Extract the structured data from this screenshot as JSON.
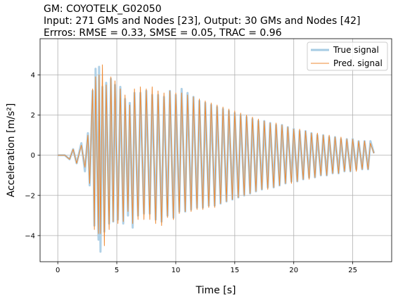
{
  "chart_data": {
    "type": "line",
    "title_lines": [
      "GM: COYOTELK_G02050",
      "Input: 271 GMs and Nodes [23], Output: 30 GMs and Nodes [42]",
      "Errros: RMSE = 0.33, SMSE = 0.05, TRAC = 0.96"
    ],
    "xlabel": "Time [s]",
    "ylabel": "Acceleration [m/s²]",
    "xlim": [
      -1.5,
      28.3
    ],
    "ylim": [
      -5.3,
      5.8
    ],
    "xticks": [
      0,
      5,
      10,
      15,
      20,
      25
    ],
    "yticks": [
      -4,
      -2,
      0,
      2,
      4
    ],
    "grid": true,
    "legend_position": "upper right",
    "series": [
      {
        "name": "True signal",
        "color": "#a6cbe3",
        "values": [
          [
            0.0,
            0.0
          ],
          [
            0.6,
            0.0
          ],
          [
            1.0,
            -0.2
          ],
          [
            1.3,
            0.3
          ],
          [
            1.6,
            -0.4
          ],
          [
            2.0,
            0.6
          ],
          [
            2.3,
            -0.8
          ],
          [
            2.55,
            1.1
          ],
          [
            2.7,
            -1.5
          ],
          [
            2.95,
            3.2
          ],
          [
            3.1,
            -3.5
          ],
          [
            3.2,
            4.3
          ],
          [
            3.45,
            -4.2
          ],
          [
            3.5,
            4.4
          ],
          [
            3.62,
            -4.8
          ],
          [
            3.78,
            3.4
          ],
          [
            3.95,
            -3.8
          ],
          [
            4.1,
            3.6
          ],
          [
            4.35,
            -3.4
          ],
          [
            4.5,
            3.8
          ],
          [
            4.7,
            -3.3
          ],
          [
            4.85,
            3.5
          ],
          [
            5.1,
            -3.2
          ],
          [
            5.3,
            3.4
          ],
          [
            5.55,
            -3.4
          ],
          [
            5.7,
            2.8
          ],
          [
            5.95,
            -3.0
          ],
          [
            6.1,
            2.6
          ],
          [
            6.35,
            -3.6
          ],
          [
            6.5,
            3.1
          ],
          [
            6.8,
            -3.0
          ],
          [
            7.0,
            3.1
          ],
          [
            7.3,
            -2.9
          ],
          [
            7.5,
            3.2
          ],
          [
            7.8,
            -2.9
          ],
          [
            8.0,
            3.0
          ],
          [
            8.3,
            -3.2
          ],
          [
            8.5,
            3.0
          ],
          [
            8.8,
            -3.3
          ],
          [
            9.0,
            2.9
          ],
          [
            9.3,
            -3.0
          ],
          [
            9.5,
            3.2
          ],
          [
            9.8,
            -3.1
          ],
          [
            10.0,
            3.0
          ],
          [
            10.3,
            -2.8
          ],
          [
            10.5,
            3.3
          ],
          [
            10.8,
            -2.8
          ],
          [
            11.0,
            3.1
          ],
          [
            11.3,
            -2.7
          ],
          [
            11.5,
            2.9
          ],
          [
            11.8,
            -2.6
          ],
          [
            12.0,
            2.7
          ],
          [
            12.3,
            -2.6
          ],
          [
            12.5,
            2.6
          ],
          [
            12.8,
            -2.5
          ],
          [
            13.0,
            2.5
          ],
          [
            13.3,
            -2.5
          ],
          [
            13.5,
            2.4
          ],
          [
            13.8,
            -2.4
          ],
          [
            14.0,
            2.3
          ],
          [
            14.3,
            -2.3
          ],
          [
            14.5,
            2.2
          ],
          [
            14.8,
            -2.2
          ],
          [
            15.0,
            2.1
          ],
          [
            15.3,
            -2.1
          ],
          [
            15.5,
            2.0
          ],
          [
            15.8,
            -2.0
          ],
          [
            16.0,
            1.9
          ],
          [
            16.3,
            -1.9
          ],
          [
            16.5,
            1.8
          ],
          [
            16.8,
            -1.8
          ],
          [
            17.0,
            1.7
          ],
          [
            17.3,
            -1.7
          ],
          [
            17.5,
            1.7
          ],
          [
            17.8,
            -1.6
          ],
          [
            18.0,
            1.6
          ],
          [
            18.3,
            -1.6
          ],
          [
            18.5,
            1.5
          ],
          [
            18.8,
            -1.5
          ],
          [
            19.0,
            1.5
          ],
          [
            19.3,
            -1.4
          ],
          [
            19.5,
            1.4
          ],
          [
            19.8,
            -1.3
          ],
          [
            20.0,
            1.3
          ],
          [
            20.3,
            -1.3
          ],
          [
            20.5,
            1.2
          ],
          [
            20.8,
            -1.2
          ],
          [
            21.0,
            1.2
          ],
          [
            21.3,
            -1.1
          ],
          [
            21.5,
            1.1
          ],
          [
            21.8,
            -1.1
          ],
          [
            22.0,
            1.0
          ],
          [
            22.3,
            -1.0
          ],
          [
            22.5,
            1.0
          ],
          [
            22.8,
            -1.0
          ],
          [
            23.0,
            0.9
          ],
          [
            23.3,
            -0.9
          ],
          [
            23.5,
            0.9
          ],
          [
            23.8,
            -0.9
          ],
          [
            24.0,
            0.8
          ],
          [
            24.3,
            -0.8
          ],
          [
            24.5,
            0.8
          ],
          [
            24.8,
            -0.8
          ],
          [
            25.0,
            0.8
          ],
          [
            25.3,
            -0.7
          ],
          [
            25.5,
            0.7
          ],
          [
            25.8,
            -0.7
          ],
          [
            26.0,
            0.7
          ],
          [
            26.3,
            -0.7
          ],
          [
            26.5,
            0.7
          ],
          [
            26.8,
            0.1
          ]
        ]
      },
      {
        "name": "Pred. signal",
        "color": "#ee8a33",
        "values": [
          [
            0.0,
            0.0
          ],
          [
            0.6,
            0.0
          ],
          [
            1.0,
            -0.2
          ],
          [
            1.3,
            0.3
          ],
          [
            1.6,
            -0.4
          ],
          [
            2.0,
            0.5
          ],
          [
            2.3,
            -0.6
          ],
          [
            2.55,
            1.0
          ],
          [
            2.7,
            -1.4
          ],
          [
            2.95,
            3.3
          ],
          [
            3.1,
            -3.7
          ],
          [
            3.2,
            3.9
          ],
          [
            3.45,
            -3.9
          ],
          [
            3.5,
            4.0
          ],
          [
            3.62,
            -3.9
          ],
          [
            3.78,
            4.5
          ],
          [
            3.95,
            -4.5
          ],
          [
            4.1,
            3.5
          ],
          [
            4.35,
            -3.7
          ],
          [
            4.5,
            3.9
          ],
          [
            4.7,
            -3.3
          ],
          [
            4.85,
            3.7
          ],
          [
            5.1,
            -3.4
          ],
          [
            5.3,
            3.3
          ],
          [
            5.55,
            -3.3
          ],
          [
            5.7,
            3.0
          ],
          [
            5.95,
            -2.8
          ],
          [
            6.1,
            2.5
          ],
          [
            6.35,
            -3.4
          ],
          [
            6.5,
            3.3
          ],
          [
            6.8,
            -3.2
          ],
          [
            7.0,
            3.4
          ],
          [
            7.3,
            -3.2
          ],
          [
            7.5,
            3.3
          ],
          [
            7.8,
            -3.2
          ],
          [
            8.0,
            3.4
          ],
          [
            8.3,
            -3.4
          ],
          [
            8.5,
            3.2
          ],
          [
            8.8,
            -3.5
          ],
          [
            9.0,
            3.1
          ],
          [
            9.3,
            -3.1
          ],
          [
            9.5,
            3.2
          ],
          [
            9.8,
            -3.2
          ],
          [
            10.0,
            3.1
          ],
          [
            10.3,
            -2.9
          ],
          [
            10.5,
            3.1
          ],
          [
            10.8,
            -2.8
          ],
          [
            11.0,
            3.0
          ],
          [
            11.3,
            -2.8
          ],
          [
            11.5,
            2.9
          ],
          [
            11.8,
            -2.7
          ],
          [
            12.0,
            2.8
          ],
          [
            12.3,
            -2.7
          ],
          [
            12.5,
            2.7
          ],
          [
            12.8,
            -2.6
          ],
          [
            13.0,
            2.6
          ],
          [
            13.3,
            -2.6
          ],
          [
            13.5,
            2.5
          ],
          [
            13.8,
            -2.4
          ],
          [
            14.0,
            2.4
          ],
          [
            14.3,
            -2.3
          ],
          [
            14.5,
            2.3
          ],
          [
            14.8,
            -2.2
          ],
          [
            15.0,
            2.2
          ],
          [
            15.3,
            -2.1
          ],
          [
            15.5,
            2.1
          ],
          [
            15.8,
            -2.0
          ],
          [
            16.0,
            2.0
          ],
          [
            16.3,
            -1.9
          ],
          [
            16.5,
            1.9
          ],
          [
            16.8,
            -1.8
          ],
          [
            17.0,
            1.8
          ],
          [
            17.3,
            -1.7
          ],
          [
            17.5,
            1.7
          ],
          [
            17.8,
            -1.7
          ],
          [
            18.0,
            1.6
          ],
          [
            18.3,
            -1.6
          ],
          [
            18.5,
            1.6
          ],
          [
            18.8,
            -1.5
          ],
          [
            19.0,
            1.5
          ],
          [
            19.3,
            -1.4
          ],
          [
            19.5,
            1.4
          ],
          [
            19.8,
            -1.4
          ],
          [
            20.0,
            1.3
          ],
          [
            20.3,
            -1.3
          ],
          [
            20.5,
            1.3
          ],
          [
            20.8,
            -1.2
          ],
          [
            21.0,
            1.2
          ],
          [
            21.3,
            -1.2
          ],
          [
            21.5,
            1.1
          ],
          [
            21.8,
            -1.1
          ],
          [
            22.0,
            1.1
          ],
          [
            22.3,
            -1.0
          ],
          [
            22.5,
            1.0
          ],
          [
            22.8,
            -1.0
          ],
          [
            23.0,
            1.0
          ],
          [
            23.3,
            -0.9
          ],
          [
            23.5,
            0.9
          ],
          [
            23.8,
            -0.9
          ],
          [
            24.0,
            0.9
          ],
          [
            24.3,
            -0.8
          ],
          [
            24.5,
            0.8
          ],
          [
            24.8,
            -0.8
          ],
          [
            25.0,
            0.8
          ],
          [
            25.3,
            -0.8
          ],
          [
            25.5,
            0.7
          ],
          [
            25.8,
            -0.7
          ],
          [
            26.0,
            0.7
          ],
          [
            26.3,
            -0.7
          ],
          [
            26.5,
            0.6
          ],
          [
            26.8,
            0.1
          ]
        ]
      }
    ]
  }
}
